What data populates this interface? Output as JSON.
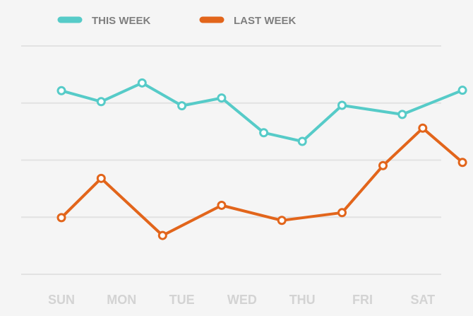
{
  "chart_data": {
    "type": "line",
    "title": "",
    "xlabel": "",
    "ylabel": "",
    "ylim": [
      0,
      100
    ],
    "grid": true,
    "legend_placement": "top-left",
    "categories": [
      "SUN",
      "MON",
      "TUE",
      "WED",
      "THU",
      "FRI",
      "SAT"
    ],
    "series": [
      {
        "name": "THIS WEEK",
        "color": "#56cbc8",
        "points": [
          {
            "x": 0.0,
            "y": 80.4
          },
          {
            "x": 0.66,
            "y": 75.6
          },
          {
            "x": 1.34,
            "y": 83.8
          },
          {
            "x": 2.0,
            "y": 73.8
          },
          {
            "x": 2.66,
            "y": 77.2
          },
          {
            "x": 3.36,
            "y": 62.0
          },
          {
            "x": 4.0,
            "y": 58.2
          },
          {
            "x": 4.66,
            "y": 74.0
          },
          {
            "x": 5.66,
            "y": 70.0
          },
          {
            "x": 6.66,
            "y": 80.6
          }
        ]
      },
      {
        "name": "LAST WEEK",
        "color": "#e2651b",
        "points": [
          {
            "x": 0.0,
            "y": 24.8
          },
          {
            "x": 0.66,
            "y": 42.0
          },
          {
            "x": 1.68,
            "y": 17.0
          },
          {
            "x": 2.66,
            "y": 30.2
          },
          {
            "x": 3.66,
            "y": 23.6
          },
          {
            "x": 4.66,
            "y": 27.0
          },
          {
            "x": 5.34,
            "y": 47.6
          },
          {
            "x": 6.0,
            "y": 64.0
          },
          {
            "x": 6.66,
            "y": 49.0
          }
        ]
      }
    ]
  }
}
